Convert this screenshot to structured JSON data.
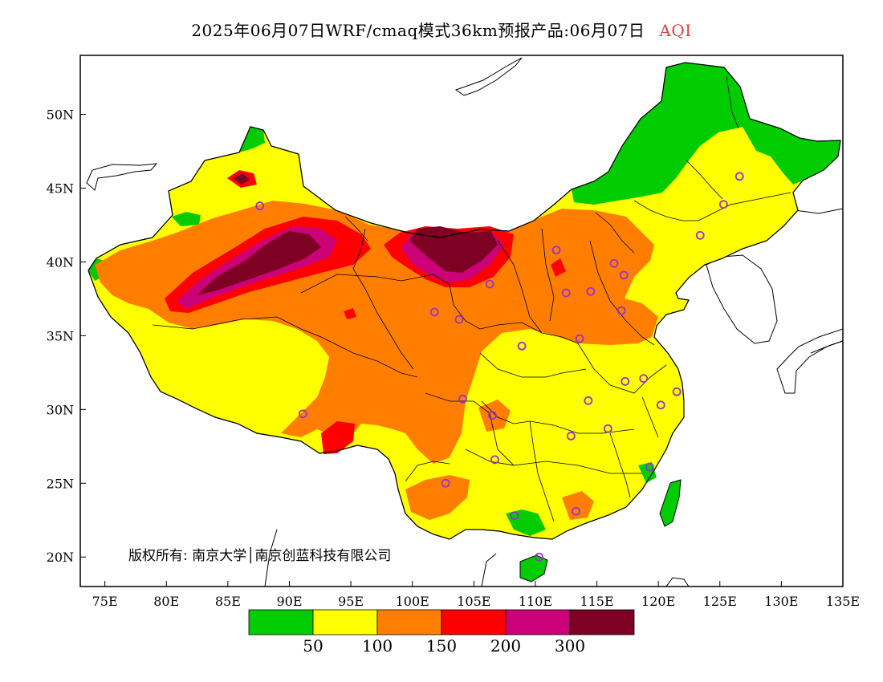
{
  "title": {
    "main": "2025年06月07日WRF/cmaq模式36km预报产品:06月07日",
    "variable": "AQI",
    "variable_color": "#e04040"
  },
  "axes": {
    "x_range": [
      73,
      135
    ],
    "y_range": [
      18,
      54
    ],
    "x_ticks": [
      {
        "value": 75,
        "label": "75E"
      },
      {
        "value": 80,
        "label": "80E"
      },
      {
        "value": 85,
        "label": "85E"
      },
      {
        "value": 90,
        "label": "90E"
      },
      {
        "value": 95,
        "label": "95E"
      },
      {
        "value": 100,
        "label": "100E"
      },
      {
        "value": 105,
        "label": "105E"
      },
      {
        "value": 110,
        "label": "110E"
      },
      {
        "value": 115,
        "label": "115E"
      },
      {
        "value": 120,
        "label": "120E"
      },
      {
        "value": 125,
        "label": "125E"
      },
      {
        "value": 130,
        "label": "130E"
      },
      {
        "value": 135,
        "label": "135E"
      }
    ],
    "y_ticks": [
      {
        "value": 20,
        "label": "20N"
      },
      {
        "value": 25,
        "label": "25N"
      },
      {
        "value": 30,
        "label": "30N"
      },
      {
        "value": 35,
        "label": "35N"
      },
      {
        "value": 40,
        "label": "40N"
      },
      {
        "value": 45,
        "label": "45N"
      },
      {
        "value": 50,
        "label": "50N"
      }
    ]
  },
  "copyright": "版权所有: 南京大学│南京创蓝科技有限公司",
  "colorbar": {
    "colors": [
      "#00cc00",
      "#ffff00",
      "#ff7e00",
      "#ff0000",
      "#cc0077",
      "#7e0023"
    ],
    "labels": [
      "50",
      "100",
      "150",
      "200",
      "300"
    ]
  },
  "colors": {
    "good": "#00cc00",
    "moderate": "#ffff00",
    "sensitive": "#ff7e00",
    "unhealthy": "#ff0000",
    "very_unhealthy": "#cc0077",
    "hazardous": "#7e0023",
    "station": "#9933cc"
  },
  "stations": [
    {
      "lon": 87.6,
      "lat": 43.8
    },
    {
      "lon": 91.1,
      "lat": 29.7
    },
    {
      "lon": 101.8,
      "lat": 36.6
    },
    {
      "lon": 103.8,
      "lat": 36.1
    },
    {
      "lon": 106.3,
      "lat": 38.5
    },
    {
      "lon": 111.7,
      "lat": 40.8
    },
    {
      "lon": 112.5,
      "lat": 37.9
    },
    {
      "lon": 114.5,
      "lat": 38.0
    },
    {
      "lon": 116.4,
      "lat": 39.9
    },
    {
      "lon": 117.2,
      "lat": 39.1
    },
    {
      "lon": 117.0,
      "lat": 36.7
    },
    {
      "lon": 113.6,
      "lat": 34.8
    },
    {
      "lon": 108.9,
      "lat": 34.3
    },
    {
      "lon": 104.1,
      "lat": 30.7
    },
    {
      "lon": 106.5,
      "lat": 29.6
    },
    {
      "lon": 106.7,
      "lat": 26.6
    },
    {
      "lon": 102.7,
      "lat": 25.0
    },
    {
      "lon": 108.3,
      "lat": 22.8
    },
    {
      "lon": 113.3,
      "lat": 23.1
    },
    {
      "lon": 110.3,
      "lat": 20.0
    },
    {
      "lon": 114.3,
      "lat": 30.6
    },
    {
      "lon": 112.9,
      "lat": 28.2
    },
    {
      "lon": 115.9,
      "lat": 28.7
    },
    {
      "lon": 117.3,
      "lat": 31.9
    },
    {
      "lon": 118.8,
      "lat": 32.1
    },
    {
      "lon": 120.2,
      "lat": 30.3
    },
    {
      "lon": 121.5,
      "lat": 31.2
    },
    {
      "lon": 119.3,
      "lat": 26.1
    },
    {
      "lon": 123.4,
      "lat": 41.8
    },
    {
      "lon": 125.3,
      "lat": 43.9
    },
    {
      "lon": 126.6,
      "lat": 45.8
    }
  ]
}
